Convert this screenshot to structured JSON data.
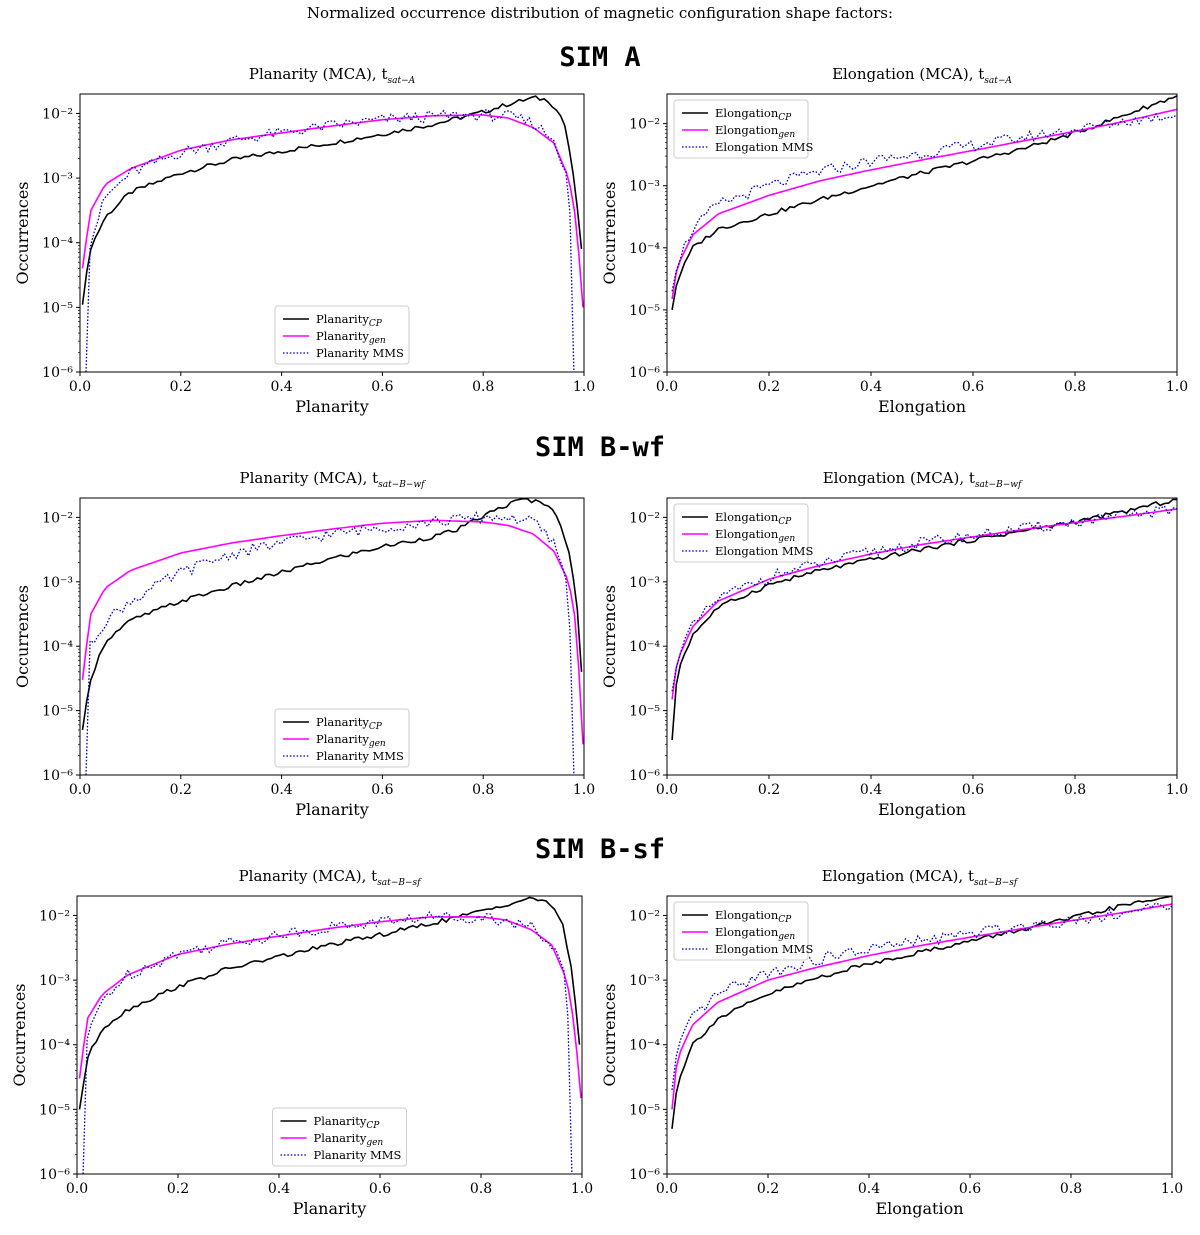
{
  "figure_title": "Normalized occurrence distribution of magnetic configuration shape factors:",
  "sim_labels": [
    "SIM A",
    "SIM B-wf",
    "SIM B-sf"
  ],
  "colors": {
    "cp": "#000000",
    "gen": "#ff00ff",
    "mms": "#0000cc"
  },
  "chart_data": [
    {
      "type": "line",
      "title": "Planarity (MCA), t",
      "title_sub": "sat−A",
      "xlabel": "Planarity",
      "ylabel": "Occurrences",
      "xlim": [
        0,
        1
      ],
      "ylim": [
        1e-06,
        0.02
      ],
      "yscale": "log",
      "xticks": [
        "0.0",
        "0.2",
        "0.4",
        "0.6",
        "0.8",
        "1.0"
      ],
      "yticks": [
        "10⁻²",
        "10⁻³",
        "10⁻⁴",
        "10⁻⁵",
        "10⁻⁶"
      ],
      "legend": {
        "position": "lower-center",
        "entries": [
          {
            "text": "Planarity",
            "sub": "CP"
          },
          {
            "text": "Planarity",
            "sub": "gen"
          },
          {
            "text": "Planarity MMS",
            "sub": ""
          }
        ]
      },
      "series": [
        {
          "name": "Planarity_CP",
          "key": "cp",
          "x": [
            0.005,
            0.02,
            0.05,
            0.1,
            0.2,
            0.3,
            0.4,
            0.5,
            0.6,
            0.7,
            0.8,
            0.85,
            0.9,
            0.93,
            0.96,
            0.98,
            0.995
          ],
          "y": [
            1.1e-05,
            8e-05,
            0.00025,
            0.0006,
            0.0012,
            0.0019,
            0.0026,
            0.0035,
            0.0048,
            0.0068,
            0.0105,
            0.014,
            0.0175,
            0.016,
            0.008,
            0.001,
            8e-05
          ]
        },
        {
          "name": "Planarity_gen",
          "key": "gen",
          "x": [
            0.005,
            0.02,
            0.05,
            0.1,
            0.2,
            0.3,
            0.4,
            0.5,
            0.6,
            0.7,
            0.8,
            0.85,
            0.9,
            0.94,
            0.97,
            0.985,
            0.998
          ],
          "y": [
            4e-05,
            0.0003,
            0.0008,
            0.0014,
            0.0027,
            0.0039,
            0.005,
            0.0064,
            0.008,
            0.0092,
            0.0095,
            0.0085,
            0.006,
            0.0035,
            0.001,
            0.0002,
            1e-05
          ]
        },
        {
          "name": "Planarity MMS",
          "key": "mms",
          "x": [
            0.012,
            0.02,
            0.05,
            0.1,
            0.2,
            0.3,
            0.4,
            0.5,
            0.6,
            0.7,
            0.8,
            0.85,
            0.9,
            0.94,
            0.97,
            0.98
          ],
          "y": [
            1e-06,
            0.0001,
            0.0005,
            0.0012,
            0.0025,
            0.0038,
            0.005,
            0.0065,
            0.008,
            0.009,
            0.0095,
            0.009,
            0.007,
            0.004,
            0.001,
            1e-06
          ]
        }
      ]
    },
    {
      "type": "line",
      "title": "Elongation (MCA), t",
      "title_sub": "sat−A",
      "xlabel": "Elongation",
      "ylabel": "Occurrences",
      "xlim": [
        0,
        1
      ],
      "ylim": [
        1e-06,
        0.03
      ],
      "yscale": "log",
      "xticks": [
        "0.0",
        "0.2",
        "0.4",
        "0.6",
        "0.8",
        "1.0"
      ],
      "yticks": [
        "10⁻²",
        "10⁻³",
        "10⁻⁴",
        "10⁻⁵",
        "10⁻⁶"
      ],
      "legend": {
        "position": "upper-left",
        "entries": [
          {
            "text": "Elongation",
            "sub": "CP"
          },
          {
            "text": "Elongation",
            "sub": "gen"
          },
          {
            "text": "Elongation MMS",
            "sub": ""
          }
        ]
      },
      "series": [
        {
          "name": "Elongation_CP",
          "key": "cp",
          "x": [
            0.01,
            0.02,
            0.05,
            0.1,
            0.2,
            0.3,
            0.4,
            0.5,
            0.6,
            0.7,
            0.8,
            0.9,
            1.0
          ],
          "y": [
            1e-05,
            3e-05,
            0.0001,
            0.0002,
            0.00035,
            0.0006,
            0.001,
            0.0016,
            0.0025,
            0.004,
            0.007,
            0.014,
            0.028
          ]
        },
        {
          "name": "Elongation_gen",
          "key": "gen",
          "x": [
            0.01,
            0.02,
            0.05,
            0.1,
            0.2,
            0.3,
            0.4,
            0.5,
            0.6,
            0.7,
            0.8,
            0.9,
            1.0
          ],
          "y": [
            1.5e-05,
            5e-05,
            0.00016,
            0.00035,
            0.0007,
            0.0012,
            0.0018,
            0.0026,
            0.0037,
            0.0053,
            0.0075,
            0.011,
            0.017
          ]
        },
        {
          "name": "Elongation MMS",
          "key": "mms",
          "x": [
            0.01,
            0.02,
            0.05,
            0.1,
            0.2,
            0.3,
            0.4,
            0.5,
            0.6,
            0.7,
            0.8,
            0.9,
            1.0
          ],
          "y": [
            2e-05,
            6e-05,
            0.0002,
            0.0005,
            0.001,
            0.0017,
            0.0025,
            0.0033,
            0.0045,
            0.006,
            0.008,
            0.011,
            0.014
          ]
        }
      ]
    },
    {
      "type": "line",
      "title": "Planarity (MCA), t",
      "title_sub": "sat−B−wf",
      "xlabel": "Planarity",
      "ylabel": "Occurrences",
      "xlim": [
        0,
        1
      ],
      "ylim": [
        1e-06,
        0.02
      ],
      "yscale": "log",
      "xticks": [
        "0.0",
        "0.2",
        "0.4",
        "0.6",
        "0.8",
        "1.0"
      ],
      "yticks": [
        "10⁻²",
        "10⁻³",
        "10⁻⁴",
        "10⁻⁵",
        "10⁻⁶"
      ],
      "legend": {
        "position": "lower-center",
        "entries": [
          {
            "text": "Planarity",
            "sub": "CP"
          },
          {
            "text": "Planarity",
            "sub": "gen"
          },
          {
            "text": "Planarity MMS",
            "sub": ""
          }
        ]
      },
      "series": [
        {
          "name": "Planarity_CP",
          "key": "cp",
          "x": [
            0.005,
            0.02,
            0.05,
            0.1,
            0.2,
            0.3,
            0.4,
            0.5,
            0.6,
            0.7,
            0.75,
            0.8,
            0.85,
            0.88,
            0.92,
            0.95,
            0.97,
            0.985,
            0.995
          ],
          "y": [
            5e-06,
            3e-05,
            0.00012,
            0.00025,
            0.0005,
            0.00085,
            0.0014,
            0.0023,
            0.0035,
            0.005,
            0.0065,
            0.0105,
            0.016,
            0.019,
            0.017,
            0.01,
            0.003,
            0.0006,
            4e-05
          ]
        },
        {
          "name": "Planarity_gen",
          "key": "gen",
          "x": [
            0.005,
            0.02,
            0.05,
            0.1,
            0.2,
            0.3,
            0.4,
            0.5,
            0.6,
            0.7,
            0.8,
            0.85,
            0.9,
            0.94,
            0.97,
            0.985,
            0.998
          ],
          "y": [
            3e-05,
            0.0003,
            0.0008,
            0.0015,
            0.0028,
            0.004,
            0.0052,
            0.0066,
            0.0081,
            0.009,
            0.0085,
            0.0075,
            0.0055,
            0.003,
            0.001,
            0.0002,
            3e-06
          ]
        },
        {
          "name": "Planarity MMS",
          "key": "mms",
          "x": [
            0.012,
            0.02,
            0.05,
            0.1,
            0.2,
            0.3,
            0.4,
            0.5,
            0.6,
            0.7,
            0.8,
            0.85,
            0.9,
            0.94,
            0.97,
            0.98
          ],
          "y": [
            1e-06,
            0.0001,
            0.00025,
            0.0005,
            0.0014,
            0.0027,
            0.004,
            0.0055,
            0.007,
            0.0085,
            0.01,
            0.01,
            0.0085,
            0.004,
            0.0008,
            1e-06
          ]
        }
      ]
    },
    {
      "type": "line",
      "title": "Elongation (MCA), t",
      "title_sub": "sat−B−wf",
      "xlabel": "Elongation",
      "ylabel": "Occurrences",
      "xlim": [
        0,
        1
      ],
      "ylim": [
        1e-06,
        0.02
      ],
      "yscale": "log",
      "xticks": [
        "0.0",
        "0.2",
        "0.4",
        "0.6",
        "0.8",
        "1.0"
      ],
      "yticks": [
        "10⁻²",
        "10⁻³",
        "10⁻⁴",
        "10⁻⁵",
        "10⁻⁶"
      ],
      "legend": {
        "position": "upper-left",
        "entries": [
          {
            "text": "Elongation",
            "sub": "CP"
          },
          {
            "text": "Elongation",
            "sub": "gen"
          },
          {
            "text": "Elongation MMS",
            "sub": ""
          }
        ]
      },
      "series": [
        {
          "name": "Elongation_CP",
          "key": "cp",
          "x": [
            0.01,
            0.02,
            0.05,
            0.1,
            0.2,
            0.3,
            0.4,
            0.5,
            0.6,
            0.7,
            0.8,
            0.9,
            1.0
          ],
          "y": [
            3.5e-06,
            4e-05,
            0.00015,
            0.0004,
            0.0009,
            0.0015,
            0.0022,
            0.0032,
            0.0045,
            0.0062,
            0.0085,
            0.0125,
            0.019
          ]
        },
        {
          "name": "Elongation_gen",
          "key": "gen",
          "x": [
            0.01,
            0.02,
            0.05,
            0.1,
            0.2,
            0.3,
            0.4,
            0.5,
            0.6,
            0.7,
            0.8,
            0.9,
            1.0
          ],
          "y": [
            1.5e-05,
            6e-05,
            0.0002,
            0.0005,
            0.0011,
            0.0018,
            0.0027,
            0.0038,
            0.005,
            0.0065,
            0.0083,
            0.0105,
            0.0135
          ]
        },
        {
          "name": "Elongation MMS",
          "key": "mms",
          "x": [
            0.01,
            0.02,
            0.05,
            0.1,
            0.2,
            0.3,
            0.4,
            0.5,
            0.6,
            0.7,
            0.8,
            0.9,
            1.0
          ],
          "y": [
            2e-05,
            7e-05,
            0.0002,
            0.00055,
            0.0012,
            0.0019,
            0.0029,
            0.004,
            0.0052,
            0.0066,
            0.0084,
            0.0105,
            0.0135
          ]
        }
      ]
    },
    {
      "type": "line",
      "title": "Planarity (MCA), t",
      "title_sub": "sat−B−sf",
      "xlabel": "Planarity",
      "ylabel": "Occurrences",
      "xlim": [
        0,
        1
      ],
      "ylim": [
        1e-06,
        0.02
      ],
      "yscale": "log",
      "xticks": [
        "0.0",
        "0.2",
        "0.4",
        "0.6",
        "0.8",
        "1.0"
      ],
      "yticks": [
        "10⁻²",
        "10⁻³",
        "10⁻⁴",
        "10⁻⁵",
        "10⁻⁶"
      ],
      "legend": {
        "position": "lower-center",
        "entries": [
          {
            "text": "Planarity",
            "sub": "CP"
          },
          {
            "text": "Planarity",
            "sub": "gen"
          },
          {
            "text": "Planarity MMS",
            "sub": ""
          }
        ]
      },
      "series": [
        {
          "name": "Planarity_CP",
          "key": "cp",
          "x": [
            0.005,
            0.02,
            0.05,
            0.1,
            0.2,
            0.3,
            0.4,
            0.5,
            0.6,
            0.7,
            0.8,
            0.85,
            0.9,
            0.93,
            0.96,
            0.98,
            0.995
          ],
          "y": [
            1e-05,
            6e-05,
            0.00018,
            0.00035,
            0.0008,
            0.0015,
            0.0023,
            0.0035,
            0.005,
            0.0075,
            0.0115,
            0.015,
            0.0185,
            0.017,
            0.008,
            0.0015,
            0.0001
          ]
        },
        {
          "name": "Planarity_gen",
          "key": "gen",
          "x": [
            0.005,
            0.02,
            0.05,
            0.1,
            0.2,
            0.3,
            0.4,
            0.5,
            0.6,
            0.7,
            0.8,
            0.85,
            0.9,
            0.94,
            0.97,
            0.985,
            0.998
          ],
          "y": [
            3e-05,
            0.00025,
            0.0006,
            0.0012,
            0.0025,
            0.0036,
            0.0048,
            0.0063,
            0.008,
            0.0095,
            0.0095,
            0.0085,
            0.006,
            0.0035,
            0.001,
            0.0002,
            1.5e-05
          ]
        },
        {
          "name": "Planarity MMS",
          "key": "mms",
          "x": [
            0.012,
            0.02,
            0.05,
            0.1,
            0.2,
            0.3,
            0.4,
            0.5,
            0.6,
            0.7,
            0.8,
            0.85,
            0.9,
            0.94,
            0.97,
            0.98
          ],
          "y": [
            1e-06,
            0.00012,
            0.0005,
            0.0012,
            0.0026,
            0.0038,
            0.005,
            0.0065,
            0.008,
            0.0095,
            0.0095,
            0.0085,
            0.0065,
            0.0035,
            0.001,
            1e-06
          ]
        }
      ]
    },
    {
      "type": "line",
      "title": "Elongation (MCA), t",
      "title_sub": "sat−B−sf",
      "xlabel": "Elongation",
      "ylabel": "Occurrences",
      "xlim": [
        0,
        1
      ],
      "ylim": [
        1e-06,
        0.02
      ],
      "yscale": "log",
      "xticks": [
        "0.0",
        "0.2",
        "0.4",
        "0.6",
        "0.8",
        "1.0"
      ],
      "yticks": [
        "10⁻²",
        "10⁻³",
        "10⁻⁴",
        "10⁻⁵",
        "10⁻⁶"
      ],
      "legend": {
        "position": "upper-left",
        "entries": [
          {
            "text": "Elongation",
            "sub": "CP"
          },
          {
            "text": "Elongation",
            "sub": "gen"
          },
          {
            "text": "Elongation MMS",
            "sub": ""
          }
        ]
      },
      "series": [
        {
          "name": "Elongation_CP",
          "key": "cp",
          "x": [
            0.01,
            0.02,
            0.05,
            0.1,
            0.2,
            0.3,
            0.4,
            0.5,
            0.6,
            0.7,
            0.8,
            0.9,
            1.0
          ],
          "y": [
            5e-06,
            2.5e-05,
            0.0001,
            0.00025,
            0.0006,
            0.0011,
            0.0018,
            0.0027,
            0.004,
            0.006,
            0.009,
            0.014,
            0.02
          ]
        },
        {
          "name": "Elongation_gen",
          "key": "gen",
          "x": [
            0.01,
            0.02,
            0.05,
            0.1,
            0.2,
            0.3,
            0.4,
            0.5,
            0.6,
            0.7,
            0.8,
            0.9,
            1.0
          ],
          "y": [
            1e-05,
            6e-05,
            0.0002,
            0.00045,
            0.001,
            0.0016,
            0.0024,
            0.0034,
            0.0046,
            0.0062,
            0.0083,
            0.011,
            0.015
          ]
        },
        {
          "name": "Elongation MMS",
          "key": "mms",
          "x": [
            0.01,
            0.02,
            0.05,
            0.1,
            0.2,
            0.3,
            0.4,
            0.5,
            0.6,
            0.7,
            0.8,
            0.9,
            1.0
          ],
          "y": [
            2e-05,
            8e-05,
            0.00025,
            0.0006,
            0.0013,
            0.0021,
            0.003,
            0.004,
            0.0052,
            0.0068,
            0.0085,
            0.011,
            0.014
          ]
        }
      ]
    }
  ]
}
